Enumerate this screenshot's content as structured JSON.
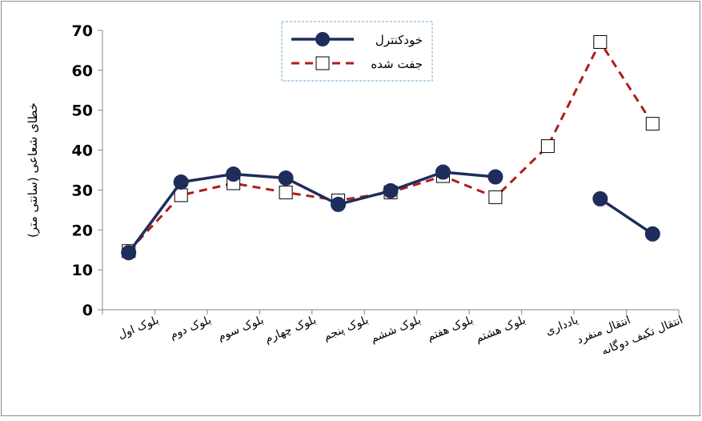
{
  "chart_data": {
    "type": "line",
    "title": "",
    "ylabel": "خطای شعاعی (سانتی متر)",
    "xlabel": "",
    "ylim": [
      0,
      70
    ],
    "yticks": [
      0,
      10,
      20,
      30,
      40,
      50,
      60,
      70
    ],
    "grid": false,
    "legend_position": "top-center",
    "categories": [
      "بلوک اول",
      "بلوک دوم",
      "بلوک سوم",
      "بلوک چهارم",
      "بلوک پنجم",
      "بلوک ششم",
      "بلوک هفتم",
      "بلوک هشتم",
      "یادداری",
      "انتقال منفرد",
      "انتقال تکیف دوگانه"
    ],
    "series": [
      {
        "name": "خودکنترل",
        "color": "#1f2d5c",
        "marker": "filled-circle",
        "line": "solid",
        "values": [
          14.3,
          32.0,
          34.0,
          33.0,
          26.4,
          29.8,
          34.5,
          33.3,
          null,
          27.8,
          19.0
        ]
      },
      {
        "name": "جفت شده",
        "color": "#b01c1c",
        "marker": "hollow-square",
        "line": "dashed",
        "values": [
          14.7,
          28.7,
          31.7,
          29.4,
          27.4,
          29.4,
          33.5,
          28.2,
          41.0,
          67.1,
          46.6
        ]
      }
    ]
  }
}
